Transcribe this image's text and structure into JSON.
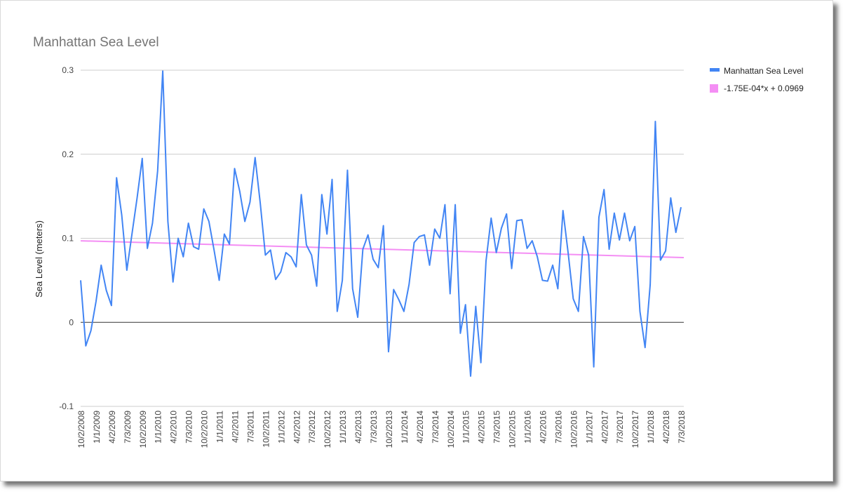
{
  "chart_data": {
    "type": "line",
    "title": "Manhattan Sea Level",
    "xlabel": "",
    "ylabel": "Sea Level (meters)",
    "ylim": [
      -0.1,
      0.3
    ],
    "yticks": [
      "0.3",
      "0.2",
      "0.1",
      "0",
      "-0.1"
    ],
    "xtick_labels": [
      "10/2/2008",
      "1/1/2009",
      "4/2/2009",
      "7/3/2009",
      "10/2/2009",
      "1/1/2010",
      "4/2/2010",
      "7/3/2010",
      "10/2/2010",
      "1/1/2011",
      "4/2/2011",
      "7/3/2011",
      "10/2/2011",
      "1/1/2012",
      "4/2/2012",
      "7/3/2012",
      "10/2/2012",
      "1/1/2013",
      "4/2/2013",
      "7/3/2013",
      "10/2/2013",
      "1/1/2014",
      "4/2/2014",
      "7/3/2014",
      "10/2/2014",
      "1/1/2015",
      "4/2/2015",
      "7/3/2015",
      "10/2/2015",
      "1/1/2016",
      "4/2/2016",
      "7/3/2016",
      "10/2/2016",
      "1/1/2017",
      "4/2/2017",
      "7/3/2017",
      "10/2/2017",
      "1/1/2018",
      "4/2/2018",
      "7/3/2018"
    ],
    "grid": true,
    "legend_position": "right",
    "series": [
      {
        "name": "Manhattan Sea Level",
        "color": "#4285f4",
        "values": [
          0.05,
          -0.028,
          -0.01,
          0.025,
          0.068,
          0.038,
          0.02,
          0.172,
          0.128,
          0.062,
          0.105,
          0.148,
          0.195,
          0.088,
          0.118,
          0.18,
          0.299,
          0.12,
          0.048,
          0.1,
          0.078,
          0.118,
          0.09,
          0.087,
          0.135,
          0.12,
          0.086,
          0.05,
          0.105,
          0.093,
          0.183,
          0.156,
          0.12,
          0.143,
          0.196,
          0.142,
          0.08,
          0.086,
          0.051,
          0.06,
          0.083,
          0.078,
          0.066,
          0.152,
          0.092,
          0.08,
          0.043,
          0.152,
          0.105,
          0.17,
          0.013,
          0.05,
          0.181,
          0.04,
          0.006,
          0.087,
          0.104,
          0.075,
          0.065,
          0.115,
          -0.035,
          0.039,
          0.027,
          0.013,
          0.045,
          0.095,
          0.102,
          0.104,
          0.068,
          0.111,
          0.1,
          0.14,
          0.034,
          0.14,
          -0.013,
          0.021,
          -0.064,
          0.019,
          -0.048,
          0.073,
          0.124,
          0.083,
          0.112,
          0.129,
          0.064,
          0.121,
          0.122,
          0.088,
          0.097,
          0.078,
          0.05,
          0.049,
          0.068,
          0.04,
          0.133,
          0.083,
          0.028,
          0.013,
          0.102,
          0.08,
          -0.053,
          0.125,
          0.158,
          0.087,
          0.13,
          0.098,
          0.13,
          0.097,
          0.114,
          0.013,
          -0.03,
          0.045,
          0.239,
          0.074,
          0.085,
          0.148,
          0.107,
          0.137
        ]
      },
      {
        "name": "-1.75E-04*x + 0.0969",
        "color": "#f48ef4",
        "values": [
          0.097,
          0.077
        ]
      }
    ]
  }
}
